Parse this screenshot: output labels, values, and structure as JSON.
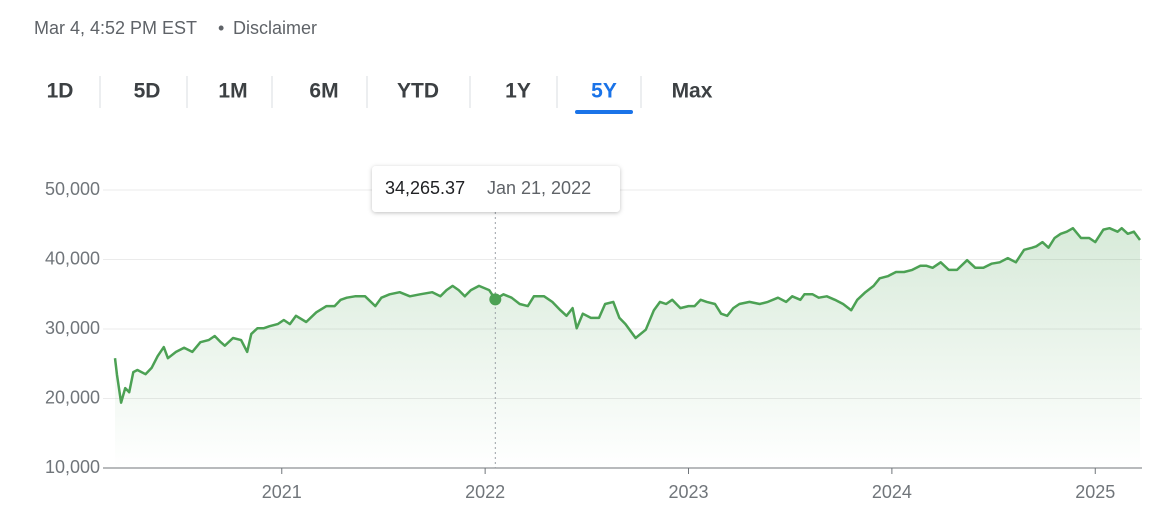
{
  "header": {
    "timestamp": "Mar 4, 4:52 PM EST",
    "separator": "•",
    "disclaimer": "Disclaimer"
  },
  "tabs": {
    "items": [
      "1D",
      "5D",
      "1M",
      "6M",
      "YTD",
      "1Y",
      "5Y",
      "Max"
    ],
    "selected": "5Y"
  },
  "chart_data": {
    "type": "area-line",
    "color": "#4ca154",
    "x": [
      2020.18,
      2020.19,
      2020.21,
      2020.23,
      2020.25,
      2020.27,
      2020.29,
      2020.33,
      2020.36,
      2020.39,
      2020.42,
      2020.44,
      2020.48,
      2020.52,
      2020.56,
      2020.6,
      2020.64,
      2020.67,
      2020.7,
      2020.72,
      2020.76,
      2020.8,
      2020.83,
      2020.85,
      2020.88,
      2020.91,
      2020.94,
      2020.98,
      2021.01,
      2021.04,
      2021.07,
      2021.12,
      2021.17,
      2021.22,
      2021.26,
      2021.29,
      2021.32,
      2021.36,
      2021.41,
      2021.46,
      2021.49,
      2021.53,
      2021.58,
      2021.63,
      2021.68,
      2021.74,
      2021.78,
      2021.81,
      2021.84,
      2021.87,
      2021.9,
      2021.93,
      2021.97,
      2022.02,
      2022.05,
      2022.09,
      2022.13,
      2022.17,
      2022.21,
      2022.24,
      2022.29,
      2022.33,
      2022.37,
      2022.4,
      2022.43,
      2022.45,
      2022.48,
      2022.52,
      2022.56,
      2022.59,
      2022.63,
      2022.66,
      2022.69,
      2022.74,
      2022.79,
      2022.83,
      2022.86,
      2022.89,
      2022.92,
      2022.96,
      2023.0,
      2023.03,
      2023.06,
      2023.09,
      2023.13,
      2023.16,
      2023.19,
      2023.22,
      2023.25,
      2023.3,
      2023.35,
      2023.39,
      2023.44,
      2023.48,
      2023.51,
      2023.55,
      2023.57,
      2023.61,
      2023.64,
      2023.68,
      2023.72,
      2023.76,
      2023.8,
      2023.83,
      2023.87,
      2023.91,
      2023.94,
      2023.98,
      2024.02,
      2024.06,
      2024.1,
      2024.14,
      2024.17,
      2024.2,
      2024.24,
      2024.28,
      2024.32,
      2024.37,
      2024.41,
      2024.45,
      2024.49,
      2024.53,
      2024.57,
      2024.61,
      2024.65,
      2024.69,
      2024.71,
      2024.74,
      2024.77,
      2024.8,
      2024.83,
      2024.86,
      2024.89,
      2024.93,
      2024.97,
      2025.0,
      2025.04,
      2025.07,
      2025.11,
      2025.13,
      2025.16,
      2025.19,
      2025.22
    ],
    "values": [
      25800,
      23400,
      19400,
      21500,
      20900,
      23800,
      24100,
      23500,
      24400,
      26100,
      27400,
      25800,
      26700,
      27300,
      26700,
      28100,
      28400,
      29000,
      28100,
      27600,
      28700,
      28400,
      26700,
      29300,
      30100,
      30100,
      30400,
      30700,
      31300,
      30700,
      31900,
      31000,
      32400,
      33300,
      33300,
      34200,
      34500,
      34700,
      34700,
      33300,
      34500,
      35000,
      35300,
      34700,
      35000,
      35300,
      34700,
      35600,
      36200,
      35600,
      34700,
      35600,
      36200,
      35600,
      34265.37,
      35000,
      34500,
      33600,
      33300,
      34700,
      34700,
      33900,
      32700,
      31900,
      33000,
      30100,
      32200,
      31600,
      31600,
      33600,
      33900,
      31600,
      30700,
      28700,
      29900,
      32700,
      33900,
      33600,
      34200,
      33000,
      33300,
      33300,
      34200,
      33900,
      33600,
      32200,
      31900,
      33000,
      33600,
      33900,
      33600,
      33900,
      34500,
      33900,
      34700,
      34200,
      35000,
      35000,
      34500,
      34700,
      34200,
      33600,
      32700,
      34200,
      35300,
      36200,
      37300,
      37600,
      38200,
      38200,
      38500,
      39100,
      39100,
      38800,
      39600,
      38500,
      38500,
      39900,
      38800,
      38800,
      39400,
      39600,
      40200,
      39600,
      41400,
      41700,
      41900,
      42500,
      41700,
      43100,
      43700,
      44000,
      44500,
      43100,
      43100,
      42500,
      44300,
      44500,
      44000,
      44500,
      43700,
      44000,
      42800
    ],
    "xlim": [
      2020.18,
      2025.22
    ],
    "xticks": [
      2021,
      2022,
      2023,
      2024,
      2025
    ],
    "ylim": [
      10000,
      50000
    ],
    "yticks": [
      {
        "value": 10000,
        "label": "10,000"
      },
      {
        "value": 20000,
        "label": "20,000"
      },
      {
        "value": 30000,
        "label": "30,000"
      },
      {
        "value": 40000,
        "label": "40,000"
      },
      {
        "value": 50000,
        "label": "50,000"
      }
    ],
    "grid": true,
    "tooltip": {
      "x": 2022.05,
      "value": 34265.37,
      "label": "34,265.37",
      "date": "Jan 21, 2022"
    }
  }
}
